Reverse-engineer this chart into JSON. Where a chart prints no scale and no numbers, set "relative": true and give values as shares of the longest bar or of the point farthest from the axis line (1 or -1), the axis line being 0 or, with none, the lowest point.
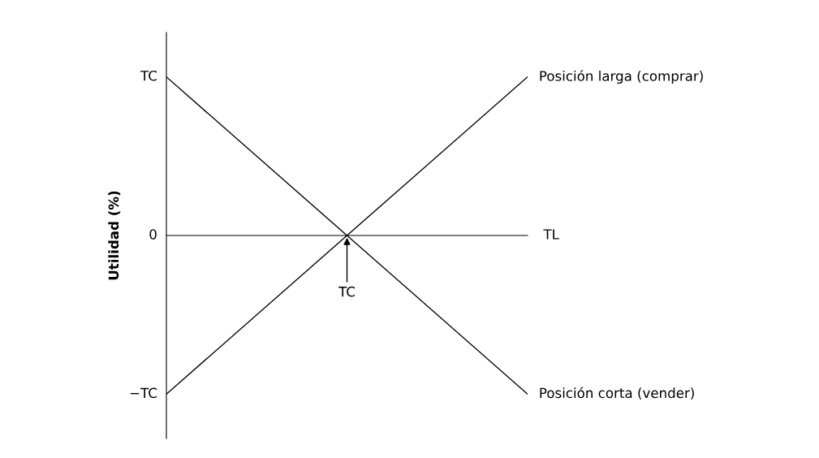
{
  "chart_data": {
    "type": "line",
    "ylabel": "Utilidad (%)",
    "xlabel": "TL",
    "categories": [
      null,
      null,
      null
    ],
    "series": [
      {
        "name": "Posición larga (comprar)",
        "color": "#000000",
        "values": [
          -1,
          0,
          1
        ]
      },
      {
        "name": "Posición corta (vender)",
        "color": "#000000",
        "values": [
          1,
          0,
          -1
        ]
      }
    ],
    "relative": true,
    "annotations": [
      "TC",
      "0",
      "−TC",
      "TC"
    ],
    "grid": false,
    "legend": false,
    "marker": "none",
    "line_style": "solid"
  }
}
